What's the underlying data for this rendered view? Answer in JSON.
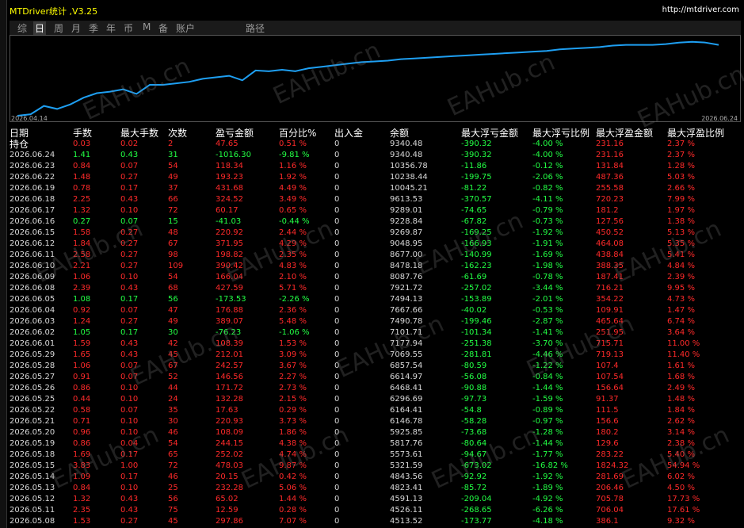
{
  "header": {
    "title": "MTDriver统计 ,V3.25",
    "url": "http://mtdriver.com"
  },
  "tabs": [
    "综",
    "日",
    "周",
    "月",
    "季",
    "年",
    "币",
    "M",
    "备",
    "账户",
    "路径"
  ],
  "selected_tab": 1,
  "watermark": "EAHub.cn",
  "chart": {
    "type": "line",
    "color": "#1e9ff2",
    "x_start": "2026.04.14",
    "x_end": "2026.06.24",
    "ylim": [
      0,
      103
    ],
    "values": [
      0,
      2,
      13,
      9,
      15,
      24,
      30,
      32,
      35,
      29,
      41,
      41,
      43,
      45,
      49,
      51,
      53,
      47,
      60,
      59,
      61,
      59,
      63,
      65,
      67,
      69,
      71,
      72,
      73,
      75,
      76,
      77,
      78,
      79,
      80,
      81,
      82,
      83,
      84,
      85,
      86,
      88,
      89,
      90,
      91,
      93,
      94,
      94,
      94,
      95,
      97,
      98,
      97,
      94
    ]
  },
  "table": {
    "columns": [
      "日期",
      "手数",
      "最大手数",
      "次数",
      "盈亏金额",
      "百分比%",
      "出入金",
      "余额",
      "最大浮亏金额",
      "最大浮亏比例",
      "最大浮盈金额",
      "最大浮盈比例"
    ],
    "rows": [
      [
        "持仓",
        "0.03",
        "0.02",
        "2",
        "47.65",
        "0.51 %",
        "0",
        "9340.48",
        "-390.32",
        "-4.00 %",
        "231.16",
        "2.37 %"
      ],
      [
        "2026.06.24",
        "1.41",
        "0.43",
        "31",
        "-1016.30",
        "-9.81 %",
        "0",
        "9340.48",
        "-390.32",
        "-4.00 %",
        "231.16",
        "2.37 %"
      ],
      [
        "2026.06.23",
        "0.84",
        "0.07",
        "54",
        "118.34",
        "1.16 %",
        "0",
        "10356.78",
        "-11.86",
        "-0.12 %",
        "131.84",
        "1.28 %"
      ],
      [
        "2026.06.22",
        "1.48",
        "0.27",
        "49",
        "193.23",
        "1.92 %",
        "0",
        "10238.44",
        "-199.75",
        "-2.06 %",
        "487.36",
        "5.03 %"
      ],
      [
        "2026.06.19",
        "0.78",
        "0.17",
        "37",
        "431.68",
        "4.49 %",
        "0",
        "10045.21",
        "-81.22",
        "-0.82 %",
        "255.58",
        "2.66 %"
      ],
      [
        "2026.06.18",
        "2.25",
        "0.43",
        "66",
        "324.52",
        "3.49 %",
        "0",
        "9613.53",
        "-370.57",
        "-4.11 %",
        "720.23",
        "7.99 %"
      ],
      [
        "2026.06.17",
        "1.32",
        "0.10",
        "72",
        "60.17",
        "0.65 %",
        "0",
        "9289.01",
        "-74.65",
        "-0.79 %",
        "181.2",
        "1.97 %"
      ],
      [
        "2026.06.16",
        "0.27",
        "0.07",
        "15",
        "-41.03",
        "-0.44 %",
        "0",
        "9228.84",
        "-67.82",
        "-0.73 %",
        "127.56",
        "1.38 %"
      ],
      [
        "2026.06.15",
        "1.58",
        "0.27",
        "48",
        "220.92",
        "2.44 %",
        "0",
        "9269.87",
        "-169.25",
        "-1.92 %",
        "450.52",
        "5.13 %"
      ],
      [
        "2026.06.12",
        "1.84",
        "0.27",
        "67",
        "371.95",
        "4.29 %",
        "0",
        "9048.95",
        "-166.93",
        "-1.91 %",
        "464.08",
        "5.35 %"
      ],
      [
        "2026.06.11",
        "2.58",
        "0.27",
        "98",
        "198.82",
        "2.35 %",
        "0",
        "8677.00",
        "-140.99",
        "-1.69 %",
        "438.84",
        "5.41 %"
      ],
      [
        "2026.06.10",
        "2.21",
        "0.27",
        "109",
        "390.42",
        "4.83 %",
        "0",
        "8478.18",
        "-162.23",
        "-1.98 %",
        "388.35",
        "4.84 %"
      ],
      [
        "2026.06.09",
        "1.06",
        "0.10",
        "54",
        "166.04",
        "2.10 %",
        "0",
        "8087.76",
        "-61.69",
        "-0.78 %",
        "187.41",
        "2.39 %"
      ],
      [
        "2026.06.08",
        "2.39",
        "0.43",
        "68",
        "427.59",
        "5.71 %",
        "0",
        "7921.72",
        "-257.02",
        "-3.44 %",
        "716.21",
        "9.95 %"
      ],
      [
        "2026.06.05",
        "1.08",
        "0.17",
        "56",
        "-173.53",
        "-2.26 %",
        "0",
        "7494.13",
        "-153.89",
        "-2.01 %",
        "354.22",
        "4.73 %"
      ],
      [
        "2026.06.04",
        "0.92",
        "0.07",
        "47",
        "176.88",
        "2.36 %",
        "0",
        "7667.66",
        "-40.02",
        "-0.53 %",
        "109.91",
        "1.47 %"
      ],
      [
        "2026.06.03",
        "1.24",
        "0.27",
        "49",
        "389.07",
        "5.48 %",
        "0",
        "7490.78",
        "-199.46",
        "-2.87 %",
        "465.64",
        "6.74 %"
      ],
      [
        "2026.06.02",
        "1.05",
        "0.17",
        "30",
        "-76.23",
        "-1.06 %",
        "0",
        "7101.71",
        "-101.34",
        "-1.41 %",
        "251.95",
        "3.64 %"
      ],
      [
        "2026.06.01",
        "1.59",
        "0.43",
        "42",
        "108.39",
        "1.53 %",
        "0",
        "7177.94",
        "-251.38",
        "-3.70 %",
        "715.71",
        "11.00 %"
      ],
      [
        "2026.05.29",
        "1.65",
        "0.43",
        "45",
        "212.01",
        "3.09 %",
        "0",
        "7069.55",
        "-281.81",
        "-4.46 %",
        "719.13",
        "11.40 %"
      ],
      [
        "2026.05.28",
        "1.06",
        "0.07",
        "67",
        "242.57",
        "3.67 %",
        "0",
        "6857.54",
        "-80.59",
        "-1.22 %",
        "107.4",
        "1.61 %"
      ],
      [
        "2026.05.27",
        "0.91",
        "0.07",
        "52",
        "146.56",
        "2.27 %",
        "0",
        "6614.97",
        "-56.08",
        "-0.84 %",
        "107.54",
        "1.68 %"
      ],
      [
        "2026.05.26",
        "0.86",
        "0.10",
        "44",
        "171.72",
        "2.73 %",
        "0",
        "6468.41",
        "-90.88",
        "-1.44 %",
        "156.64",
        "2.49 %"
      ],
      [
        "2026.05.25",
        "0.44",
        "0.10",
        "24",
        "132.28",
        "2.15 %",
        "0",
        "6296.69",
        "-97.73",
        "-1.59 %",
        "91.37",
        "1.48 %"
      ],
      [
        "2026.05.22",
        "0.58",
        "0.07",
        "35",
        "17.63",
        "0.29 %",
        "0",
        "6164.41",
        "-54.8",
        "-0.89 %",
        "111.5",
        "1.84 %"
      ],
      [
        "2026.05.21",
        "0.71",
        "0.10",
        "30",
        "220.93",
        "3.73 %",
        "0",
        "6146.78",
        "-58.28",
        "-0.97 %",
        "156.6",
        "2.62 %"
      ],
      [
        "2026.05.20",
        "0.96",
        "0.10",
        "46",
        "108.09",
        "1.86 %",
        "0",
        "5925.85",
        "-73.68",
        "-1.28 %",
        "180.2",
        "3.14 %"
      ],
      [
        "2026.05.19",
        "0.86",
        "0.04",
        "54",
        "244.15",
        "4.38 %",
        "0",
        "5817.76",
        "-80.64",
        "-1.44 %",
        "129.6",
        "2.38 %"
      ],
      [
        "2026.05.18",
        "1.69",
        "0.17",
        "65",
        "252.02",
        "4.74 %",
        "0",
        "5573.61",
        "-94.67",
        "-1.77 %",
        "283.22",
        "5.40 %"
      ],
      [
        "2026.05.15",
        "3.83",
        "1.00",
        "72",
        "478.03",
        "9.87 %",
        "0",
        "5321.59",
        "-673.02",
        "-16.82 %",
        "1824.32",
        "54.94 %"
      ],
      [
        "2026.05.14",
        "1.09",
        "0.17",
        "46",
        "20.15",
        "0.42 %",
        "0",
        "4843.56",
        "-92.92",
        "-1.92 %",
        "281.69",
        "6.02 %"
      ],
      [
        "2026.05.13",
        "0.84",
        "0.10",
        "25",
        "232.28",
        "5.06 %",
        "0",
        "4823.41",
        "-85.72",
        "-1.89 %",
        "206.46",
        "4.50 %"
      ],
      [
        "2026.05.12",
        "1.32",
        "0.43",
        "56",
        "65.02",
        "1.44 %",
        "0",
        "4591.13",
        "-209.04",
        "-4.92 %",
        "705.78",
        "17.73 %"
      ],
      [
        "2026.05.11",
        "2.35",
        "0.43",
        "75",
        "12.59",
        "0.28 %",
        "0",
        "4526.11",
        "-268.65",
        "-6.26 %",
        "706.04",
        "17.61 %"
      ],
      [
        "2026.05.08",
        "1.53",
        "0.27",
        "45",
        "297.86",
        "7.07 %",
        "0",
        "4513.52",
        "-173.77",
        "-4.18 %",
        "386.1",
        "9.32 %"
      ]
    ]
  }
}
